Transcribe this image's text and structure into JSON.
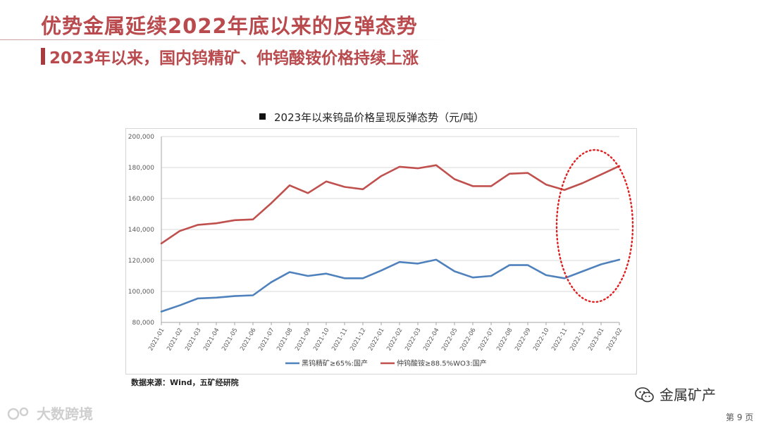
{
  "header": {
    "title": "优势金属延续2022年底以来的反弹态势",
    "subtitle": "2023年以来，国内钨精矿、仲钨酸铵价格持续上涨"
  },
  "chart_data": {
    "type": "line",
    "title": "2023年以来钨品价格呈现反弹态势（元/吨）",
    "x": [
      "2021-01",
      "2021-02",
      "2021-03",
      "2021-04",
      "2021-05",
      "2021-06",
      "2021-07",
      "2021-08",
      "2021-09",
      "2021-10",
      "2021-11",
      "2021-12",
      "2022-01",
      "2022-02",
      "2022-03",
      "2022-04",
      "2022-05",
      "2022-06",
      "2022-07",
      "2022-08",
      "2022-09",
      "2022-10",
      "2022-11",
      "2022-12",
      "2023-01",
      "2023-02"
    ],
    "series": [
      {
        "name": "黑钨精矿≥65%:国产",
        "color": "#4f81bd",
        "values": [
          87000,
          91000,
          95500,
          96000,
          97000,
          97500,
          106000,
          112500,
          110000,
          111500,
          108500,
          108500,
          113500,
          119000,
          118000,
          120500,
          113000,
          109000,
          110000,
          117000,
          117000,
          110500,
          108500,
          113000,
          117500,
          120500
        ]
      },
      {
        "name": "仲钨酸铵≥88.5%WO3:国产",
        "color": "#c0504d",
        "values": [
          131000,
          139000,
          143000,
          144000,
          146000,
          146500,
          157000,
          168500,
          163500,
          171000,
          167500,
          166000,
          174500,
          180500,
          179500,
          181500,
          172500,
          168000,
          168000,
          176000,
          176500,
          169000,
          165500,
          170000,
          175500,
          181000
        ]
      }
    ],
    "ylim": [
      80000,
      200000
    ],
    "yticks": [
      "80,000",
      "100,000",
      "120,000",
      "140,000",
      "160,000",
      "180,000",
      "200,000"
    ],
    "grid": true,
    "legend": "bottom",
    "highlight": "red dotted ellipse around 2022-11 to 2023-02"
  },
  "footer": {
    "source": "数据来源：Wind，五矿经研院",
    "wechat_name": "金属矿产",
    "page": "第 9 页",
    "watermark": "大数跨境"
  }
}
